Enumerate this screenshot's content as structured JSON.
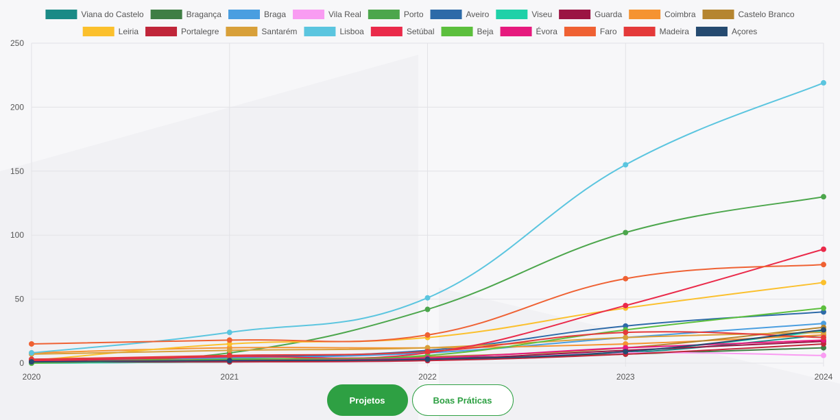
{
  "chart_data": {
    "type": "line",
    "x": [
      "2020",
      "2021",
      "2022",
      "2023",
      "2024"
    ],
    "y_ticks": [
      "0",
      "50",
      "100",
      "150",
      "200",
      "250"
    ],
    "ylim": [
      0,
      250
    ],
    "grid": true,
    "legend": "top",
    "series": [
      {
        "name": "Viana do Castelo",
        "color": "#1a8a86",
        "values": [
          0,
          1,
          4,
          8,
          22
        ]
      },
      {
        "name": "Bragança",
        "color": "#3f7e44",
        "values": [
          1,
          2,
          3,
          7,
          12
        ]
      },
      {
        "name": "Braga",
        "color": "#4a9ee0",
        "values": [
          2,
          4,
          8,
          20,
          31
        ]
      },
      {
        "name": "Vila Real",
        "color": "#f99cf2",
        "values": [
          0,
          1,
          2,
          8,
          6
        ]
      },
      {
        "name": "Porto",
        "color": "#4ca64c",
        "values": [
          1,
          8,
          42,
          102,
          130
        ]
      },
      {
        "name": "Aveiro",
        "color": "#2d6aa8",
        "values": [
          3,
          5,
          10,
          29,
          40
        ]
      },
      {
        "name": "Viseu",
        "color": "#1fd1a8",
        "values": [
          0,
          1,
          3,
          9,
          25
        ]
      },
      {
        "name": "Guarda",
        "color": "#9b1443",
        "values": [
          2,
          2,
          3,
          10,
          17
        ]
      },
      {
        "name": "Coimbra",
        "color": "#f59331",
        "values": [
          8,
          12,
          12,
          15,
          22
        ]
      },
      {
        "name": "Castelo Branco",
        "color": "#b58530",
        "values": [
          1,
          3,
          5,
          12,
          28
        ]
      },
      {
        "name": "Leiria",
        "color": "#fbc02d",
        "values": [
          2,
          15,
          20,
          43,
          63
        ]
      },
      {
        "name": "Portalegre",
        "color": "#c0263a",
        "values": [
          1,
          1,
          2,
          7,
          15
        ]
      },
      {
        "name": "Santarém",
        "color": "#d8a03a",
        "values": [
          7,
          10,
          12,
          20,
          24
        ]
      },
      {
        "name": "Lisboa",
        "color": "#5bc5df",
        "values": [
          8,
          24,
          51,
          155,
          219
        ]
      },
      {
        "name": "Setúbal",
        "color": "#ea2a4a",
        "values": [
          2,
          5,
          8,
          45,
          89
        ]
      },
      {
        "name": "Beja",
        "color": "#5cbf3d",
        "values": [
          0,
          3,
          6,
          26,
          43
        ]
      },
      {
        "name": "Évora",
        "color": "#e61a7e",
        "values": [
          1,
          2,
          4,
          12,
          18
        ]
      },
      {
        "name": "Faro",
        "color": "#ef6133",
        "values": [
          15,
          18,
          22,
          66,
          77
        ]
      },
      {
        "name": "Madeira",
        "color": "#e43a3a",
        "values": [
          3,
          6,
          9,
          24,
          20
        ]
      },
      {
        "name": "Açores",
        "color": "#254a70",
        "values": [
          1,
          2,
          3,
          9,
          26
        ]
      }
    ]
  },
  "buttons": {
    "projetos_label": "Projetos",
    "boas_praticas_label": "Boas Práticas"
  }
}
